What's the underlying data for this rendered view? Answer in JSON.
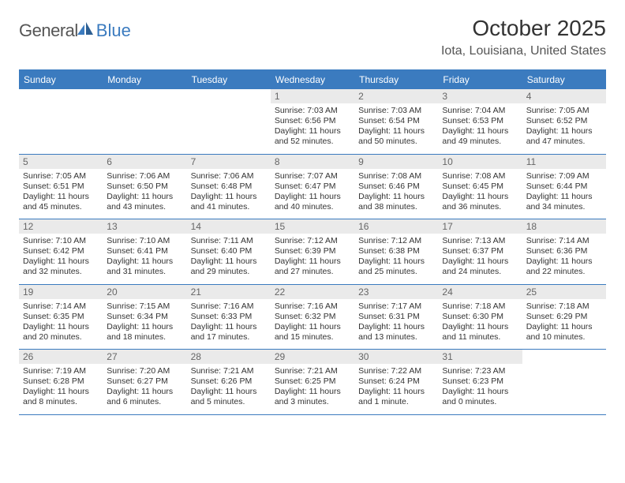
{
  "logo": {
    "text_gray": "General",
    "text_blue": "Blue",
    "blue_color": "#3b7bbf",
    "gray_color": "#555555"
  },
  "title": "October 2025",
  "location": "Iota, Louisiana, United States",
  "colors": {
    "header_bg": "#3b7bbf",
    "header_text": "#ffffff",
    "calendar_border": "#3b7bbf",
    "daynum_bg": "#eaeaea",
    "text": "#333333"
  },
  "day_headers": [
    "Sunday",
    "Monday",
    "Tuesday",
    "Wednesday",
    "Thursday",
    "Friday",
    "Saturday"
  ],
  "weeks": [
    [
      null,
      null,
      null,
      {
        "day": "1",
        "sunrise": "7:03 AM",
        "sunset": "6:56 PM",
        "daylight_h": 11,
        "daylight_m": 52
      },
      {
        "day": "2",
        "sunrise": "7:03 AM",
        "sunset": "6:54 PM",
        "daylight_h": 11,
        "daylight_m": 50
      },
      {
        "day": "3",
        "sunrise": "7:04 AM",
        "sunset": "6:53 PM",
        "daylight_h": 11,
        "daylight_m": 49
      },
      {
        "day": "4",
        "sunrise": "7:05 AM",
        "sunset": "6:52 PM",
        "daylight_h": 11,
        "daylight_m": 47
      }
    ],
    [
      {
        "day": "5",
        "sunrise": "7:05 AM",
        "sunset": "6:51 PM",
        "daylight_h": 11,
        "daylight_m": 45
      },
      {
        "day": "6",
        "sunrise": "7:06 AM",
        "sunset": "6:50 PM",
        "daylight_h": 11,
        "daylight_m": 43
      },
      {
        "day": "7",
        "sunrise": "7:06 AM",
        "sunset": "6:48 PM",
        "daylight_h": 11,
        "daylight_m": 41
      },
      {
        "day": "8",
        "sunrise": "7:07 AM",
        "sunset": "6:47 PM",
        "daylight_h": 11,
        "daylight_m": 40
      },
      {
        "day": "9",
        "sunrise": "7:08 AM",
        "sunset": "6:46 PM",
        "daylight_h": 11,
        "daylight_m": 38
      },
      {
        "day": "10",
        "sunrise": "7:08 AM",
        "sunset": "6:45 PM",
        "daylight_h": 11,
        "daylight_m": 36
      },
      {
        "day": "11",
        "sunrise": "7:09 AM",
        "sunset": "6:44 PM",
        "daylight_h": 11,
        "daylight_m": 34
      }
    ],
    [
      {
        "day": "12",
        "sunrise": "7:10 AM",
        "sunset": "6:42 PM",
        "daylight_h": 11,
        "daylight_m": 32
      },
      {
        "day": "13",
        "sunrise": "7:10 AM",
        "sunset": "6:41 PM",
        "daylight_h": 11,
        "daylight_m": 31
      },
      {
        "day": "14",
        "sunrise": "7:11 AM",
        "sunset": "6:40 PM",
        "daylight_h": 11,
        "daylight_m": 29
      },
      {
        "day": "15",
        "sunrise": "7:12 AM",
        "sunset": "6:39 PM",
        "daylight_h": 11,
        "daylight_m": 27
      },
      {
        "day": "16",
        "sunrise": "7:12 AM",
        "sunset": "6:38 PM",
        "daylight_h": 11,
        "daylight_m": 25
      },
      {
        "day": "17",
        "sunrise": "7:13 AM",
        "sunset": "6:37 PM",
        "daylight_h": 11,
        "daylight_m": 24
      },
      {
        "day": "18",
        "sunrise": "7:14 AM",
        "sunset": "6:36 PM",
        "daylight_h": 11,
        "daylight_m": 22
      }
    ],
    [
      {
        "day": "19",
        "sunrise": "7:14 AM",
        "sunset": "6:35 PM",
        "daylight_h": 11,
        "daylight_m": 20
      },
      {
        "day": "20",
        "sunrise": "7:15 AM",
        "sunset": "6:34 PM",
        "daylight_h": 11,
        "daylight_m": 18
      },
      {
        "day": "21",
        "sunrise": "7:16 AM",
        "sunset": "6:33 PM",
        "daylight_h": 11,
        "daylight_m": 17
      },
      {
        "day": "22",
        "sunrise": "7:16 AM",
        "sunset": "6:32 PM",
        "daylight_h": 11,
        "daylight_m": 15
      },
      {
        "day": "23",
        "sunrise": "7:17 AM",
        "sunset": "6:31 PM",
        "daylight_h": 11,
        "daylight_m": 13
      },
      {
        "day": "24",
        "sunrise": "7:18 AM",
        "sunset": "6:30 PM",
        "daylight_h": 11,
        "daylight_m": 11
      },
      {
        "day": "25",
        "sunrise": "7:18 AM",
        "sunset": "6:29 PM",
        "daylight_h": 11,
        "daylight_m": 10
      }
    ],
    [
      {
        "day": "26",
        "sunrise": "7:19 AM",
        "sunset": "6:28 PM",
        "daylight_h": 11,
        "daylight_m": 8
      },
      {
        "day": "27",
        "sunrise": "7:20 AM",
        "sunset": "6:27 PM",
        "daylight_h": 11,
        "daylight_m": 6
      },
      {
        "day": "28",
        "sunrise": "7:21 AM",
        "sunset": "6:26 PM",
        "daylight_h": 11,
        "daylight_m": 5
      },
      {
        "day": "29",
        "sunrise": "7:21 AM",
        "sunset": "6:25 PM",
        "daylight_h": 11,
        "daylight_m": 3
      },
      {
        "day": "30",
        "sunrise": "7:22 AM",
        "sunset": "6:24 PM",
        "daylight_h": 11,
        "daylight_m": 1
      },
      {
        "day": "31",
        "sunrise": "7:23 AM",
        "sunset": "6:23 PM",
        "daylight_h": 11,
        "daylight_m": 0
      },
      null
    ]
  ],
  "labels": {
    "sunrise": "Sunrise:",
    "sunset": "Sunset:",
    "daylight_prefix": "Daylight:",
    "hours_unit": "hours",
    "and": "and",
    "minutes_unit_singular": "minute.",
    "minutes_unit_plural": "minutes."
  }
}
